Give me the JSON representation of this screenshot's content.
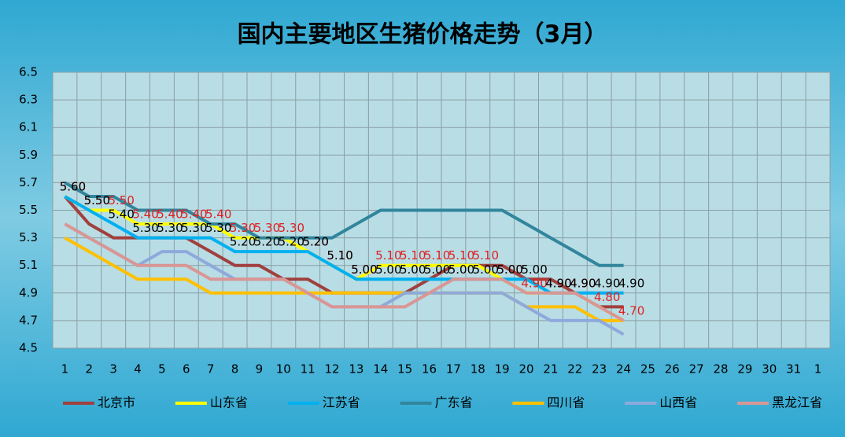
{
  "chart_data": {
    "type": "line",
    "title": "国内主要地区生猪价格走势（3月）",
    "categories": [
      "1",
      "2",
      "3",
      "4",
      "5",
      "6",
      "7",
      "8",
      "9",
      "10",
      "11",
      "12",
      "13",
      "14",
      "15",
      "16",
      "17",
      "18",
      "19",
      "20",
      "21",
      "22",
      "23",
      "24",
      "25",
      "26",
      "27",
      "28",
      "29",
      "30",
      "31",
      "1"
    ],
    "ylim": [
      4.5,
      6.5
    ],
    "yticks": [
      4.5,
      4.7,
      4.9,
      5.1,
      5.3,
      5.5,
      5.7,
      5.9,
      6.1,
      6.3,
      6.5
    ],
    "grid": true,
    "legend": "bottom",
    "series": [
      {
        "name": "北京市",
        "color": "#a0403e",
        "values": [
          5.6,
          5.4,
          5.3,
          5.3,
          5.3,
          5.3,
          5.2,
          5.1,
          5.1,
          5.0,
          5.0,
          4.9,
          4.9,
          4.9,
          4.9,
          5.0,
          5.1,
          5.1,
          5.1,
          5.0,
          5.0,
          4.9,
          4.8,
          4.8,
          null,
          null,
          null,
          null,
          null,
          null,
          null,
          null
        ]
      },
      {
        "name": "山东省",
        "color": "#ffff00",
        "label_color": "#e02020",
        "values": [
          5.6,
          5.5,
          5.5,
          5.4,
          5.4,
          5.4,
          5.4,
          5.3,
          5.3,
          5.3,
          5.2,
          5.1,
          5.0,
          5.1,
          5.1,
          5.1,
          5.1,
          5.1,
          5.0,
          4.9,
          4.9,
          4.9,
          4.8,
          4.7,
          null,
          null,
          null,
          null,
          null,
          null,
          null,
          null
        ],
        "value_labels": [
          "5.60",
          "5.50",
          "5.50",
          "5.40",
          "5.40",
          "5.40",
          "5.40",
          "5.30",
          "5.30",
          "5.30",
          "5.20",
          "5.10",
          "5.00",
          "5.10",
          "5.10",
          "5.10",
          "5.10",
          "5.10",
          "5.00",
          "4.90",
          "4.90",
          "4.90",
          "4.80",
          "4.70",
          null,
          null,
          null,
          null,
          null,
          null,
          null,
          null
        ]
      },
      {
        "name": "江苏省",
        "color": "#00b0f0",
        "label_color": "#000000",
        "values": [
          5.6,
          5.5,
          5.4,
          5.3,
          5.3,
          5.3,
          5.3,
          5.2,
          5.2,
          5.2,
          5.2,
          5.1,
          5.0,
          5.0,
          5.0,
          5.0,
          5.0,
          5.0,
          5.0,
          5.0,
          4.9,
          4.9,
          4.9,
          4.9,
          null,
          null,
          null,
          null,
          null,
          null,
          null,
          null
        ],
        "value_labels": [
          "5.60",
          "5.50",
          "5.40",
          "5.30",
          "5.30",
          "5.30",
          "5.30",
          "5.20",
          "5.20",
          "5.20",
          "5.20",
          "5.10",
          "5.00",
          "5.00",
          "5.00",
          "5.00",
          "5.00",
          "5.00",
          "5.00",
          "5.00",
          "4.90",
          "4.90",
          "4.90",
          "4.90",
          null,
          null,
          null,
          null,
          null,
          null,
          null,
          null
        ]
      },
      {
        "name": "广东省",
        "color": "#31859c",
        "values": [
          5.7,
          5.6,
          5.6,
          5.5,
          5.5,
          5.5,
          5.4,
          5.4,
          5.3,
          5.3,
          5.3,
          5.3,
          5.4,
          5.5,
          5.5,
          5.5,
          5.5,
          5.5,
          5.5,
          5.4,
          5.3,
          5.2,
          5.1,
          5.1,
          null,
          null,
          null,
          null,
          null,
          null,
          null,
          null
        ]
      },
      {
        "name": "四川省",
        "color": "#ffc000",
        "values": [
          5.3,
          5.2,
          5.1,
          5.0,
          5.0,
          5.0,
          4.9,
          4.9,
          4.9,
          4.9,
          4.9,
          4.9,
          4.9,
          4.9,
          4.9,
          4.9,
          4.9,
          4.9,
          4.9,
          4.8,
          4.8,
          4.8,
          4.7,
          4.7,
          null,
          null,
          null,
          null,
          null,
          null,
          null,
          null
        ]
      },
      {
        "name": "山西省",
        "color": "#8ea9db",
        "values": [
          5.4,
          5.3,
          5.2,
          5.1,
          5.2,
          5.2,
          5.1,
          5.0,
          5.0,
          5.0,
          4.9,
          4.8,
          4.8,
          4.8,
          4.9,
          4.9,
          4.9,
          4.9,
          4.9,
          4.8,
          4.7,
          4.7,
          4.7,
          4.6,
          null,
          null,
          null,
          null,
          null,
          null,
          null,
          null
        ]
      },
      {
        "name": "黑龙江省",
        "color": "#d99694",
        "values": [
          5.4,
          5.3,
          5.2,
          5.1,
          5.1,
          5.1,
          5.0,
          5.0,
          5.0,
          5.0,
          4.9,
          4.8,
          4.8,
          4.8,
          4.8,
          4.9,
          5.0,
          5.0,
          5.0,
          4.9,
          4.9,
          4.9,
          4.8,
          4.7,
          null,
          null,
          null,
          null,
          null,
          null,
          null,
          null
        ]
      }
    ]
  }
}
